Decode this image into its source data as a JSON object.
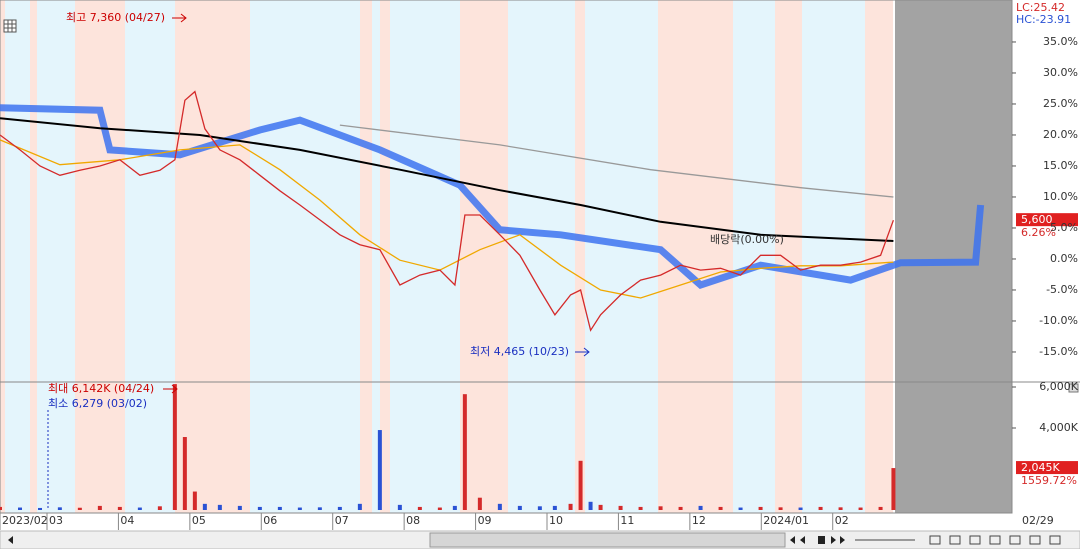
{
  "chart_data": [
    {
      "type": "line",
      "xlim": [
        0.342,
        14.51
      ],
      "ylim": [
        -19.52,
        41.77
      ],
      "yticks": [
        {
          "value": 35,
          "label": "35.0%"
        },
        {
          "value": 30,
          "label": "30.0%"
        },
        {
          "value": 25,
          "label": "25.0%"
        },
        {
          "value": 20,
          "label": "20.0%"
        },
        {
          "value": 15,
          "label": "15.0%"
        },
        {
          "value": 10,
          "label": "10.0%"
        },
        {
          "value": 5,
          "label": "5.0%"
        },
        {
          "value": 0,
          "label": "0.0%"
        },
        {
          "value": -5,
          "label": "-5.0%"
        },
        {
          "value": -10,
          "label": "-10.0%"
        },
        {
          "value": -15,
          "label": "-15.0%"
        }
      ],
      "series": [
        {
          "color": "#3d73f0",
          "x": [
            0.342,
            1.74,
            1.88,
            2.86,
            3.98,
            4.54,
            5.66,
            6.78,
            7.34,
            8.19,
            9.59,
            10.15,
            10.99,
            12.25,
            12.95,
            14.0,
            14.07
          ],
          "values": [
            24.4,
            24,
            17.6,
            16.8,
            20.8,
            22.4,
            17.6,
            11.9,
            4.7,
            3.9,
            1.5,
            -4.2,
            -1,
            -3.4,
            -0.6,
            -0.5,
            8.7
          ]
        },
        {
          "color": "#999999",
          "x": [
            5.1,
            7.34,
            9.45,
            11.55,
            12.85
          ],
          "values": [
            21.6,
            18.4,
            14.4,
            11.5,
            10
          ]
        },
        {
          "color": "#000000",
          "x": [
            0.342,
            1.74,
            3.14,
            4.54,
            5.94,
            7.34,
            8.47,
            9.59,
            10.99,
            12.85
          ],
          "values": [
            22.7,
            21.1,
            20,
            17.6,
            14.4,
            11.1,
            8.7,
            6,
            3.9,
            2.9
          ]
        },
        {
          "color": "#f0a800",
          "x": [
            0.342,
            1.18,
            2.02,
            2.86,
            3.7,
            4.26,
            4.82,
            5.38,
            5.94,
            6.5,
            7.06,
            7.62,
            8.19,
            8.75,
            9.31,
            9.87,
            10.43,
            10.99,
            11.55,
            12.11,
            12.85
          ],
          "values": [
            19.2,
            15.2,
            16,
            17.6,
            18.4,
            14.4,
            9.5,
            3.9,
            -0.2,
            -1.8,
            1.5,
            3.9,
            -1,
            -5,
            -6.3,
            -4.2,
            -2.1,
            -1.5,
            -1.1,
            -1.1,
            -0.5
          ]
        },
        {
          "color": "#d42a2a",
          "x": [
            0.342,
            0.622,
            0.902,
            1.18,
            1.46,
            1.74,
            2.02,
            2.3,
            2.58,
            2.79,
            2.93,
            3.07,
            3.21,
            3.42,
            3.7,
            3.98,
            4.26,
            4.54,
            4.82,
            5.1,
            5.38,
            5.66,
            5.94,
            6.22,
            6.5,
            6.71,
            6.85,
            7.06,
            7.34,
            7.62,
            7.9,
            8.11,
            8.33,
            8.47,
            8.61,
            8.75,
            9.03,
            9.31,
            9.59,
            9.87,
            10.15,
            10.43,
            10.71,
            10.99,
            11.27,
            11.55,
            11.83,
            12.11,
            12.39,
            12.67,
            12.85
          ],
          "values": [
            20,
            17.6,
            15,
            13.5,
            14.3,
            15,
            16,
            13.5,
            14.3,
            16,
            25.6,
            27,
            21,
            17.6,
            16,
            13.5,
            11,
            8.7,
            6.3,
            3.9,
            2.3,
            1.5,
            -4.2,
            -2.6,
            -1.8,
            -4.2,
            7.1,
            7.1,
            3.9,
            0.6,
            -5,
            -9,
            -5.8,
            -5,
            -11.5,
            -9,
            -5.8,
            -3.4,
            -2.6,
            -1,
            -1.8,
            -1.5,
            -2.6,
            0.6,
            0.6,
            -1.8,
            -1,
            -1,
            -0.5,
            0.6,
            6.26
          ]
        }
      ],
      "annotations": [
        "최고 7,360 (04/27)",
        "최저 4,465 (10/23)",
        "배당락(0.00%)"
      ],
      "lc_label": "LC:25.42",
      "hc_label": "HC:-23.91",
      "price_tag": "5,600",
      "change_tag": "6.26%"
    },
    {
      "type": "bar",
      "color": "#d42a2a",
      "down_color": "#2a52d4",
      "xlim": [
        0.342,
        14.51
      ],
      "ylim": [
        0,
        6195
      ],
      "yticks": [
        {
          "value": 6000,
          "label": "6,000K"
        },
        {
          "value": 4000,
          "label": "4,000K"
        }
      ],
      "xticks": [
        {
          "value": 0.342,
          "label": "2023/02"
        },
        {
          "value": 1,
          "label": "03"
        },
        {
          "value": 2,
          "label": "04"
        },
        {
          "value": 3,
          "label": "05"
        },
        {
          "value": 4,
          "label": "06"
        },
        {
          "value": 5,
          "label": "07"
        },
        {
          "value": 6,
          "label": "08"
        },
        {
          "value": 7,
          "label": "09"
        },
        {
          "value": 8,
          "label": "10"
        },
        {
          "value": 9,
          "label": "11"
        },
        {
          "value": 10,
          "label": "12"
        },
        {
          "value": 11,
          "label": "2024/01"
        },
        {
          "value": 12,
          "label": "02"
        }
      ],
      "end_label": "02/29",
      "x": [
        0.342,
        0.622,
        0.902,
        1.18,
        1.46,
        1.74,
        2.02,
        2.3,
        2.58,
        2.79,
        2.93,
        3.07,
        3.21,
        3.42,
        3.7,
        3.98,
        4.26,
        4.54,
        4.82,
        5.1,
        5.38,
        5.66,
        5.94,
        6.22,
        6.5,
        6.71,
        6.85,
        7.06,
        7.34,
        7.62,
        7.9,
        8.11,
        8.33,
        8.47,
        8.61,
        8.75,
        9.03,
        9.31,
        9.59,
        9.87,
        10.15,
        10.43,
        10.71,
        10.99,
        11.27,
        11.55,
        11.83,
        12.11,
        12.39,
        12.67,
        12.85
      ],
      "values": [
        150,
        120,
        100,
        130,
        110,
        200,
        150,
        120,
        180,
        6142,
        3560,
        900,
        300,
        250,
        200,
        150,
        150,
        120,
        130,
        150,
        300,
        3900,
        250,
        150,
        120,
        200,
        5650,
        600,
        300,
        200,
        180,
        200,
        300,
        2400,
        400,
        250,
        200,
        150,
        180,
        150,
        200,
        150,
        120,
        150,
        130,
        120,
        150,
        130,
        120,
        150,
        2045
      ],
      "annotations": [
        "최대 6,142K (04/24)",
        "최소 6,279 (03/02)"
      ],
      "volume_tag": "2,045K",
      "ratio_tag": "1559.72%"
    }
  ]
}
